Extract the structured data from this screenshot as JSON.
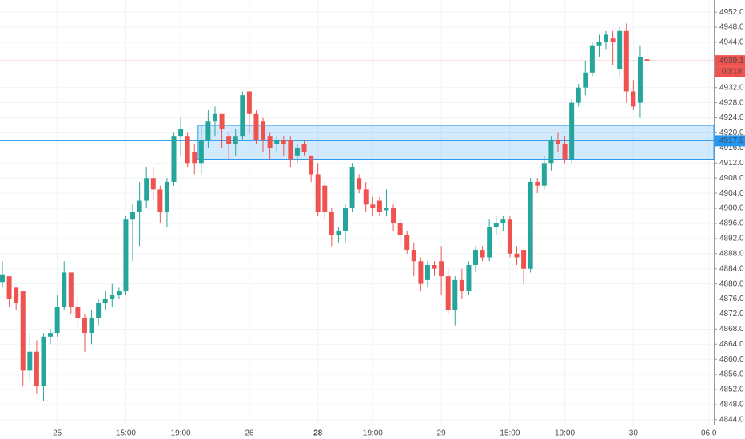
{
  "chart_data": {
    "type": "candlestick",
    "up_color": "#26a69a",
    "down_color": "#ef5350",
    "grid": true,
    "categories": [
      null,
      null,
      null,
      null,
      null,
      null,
      null,
      null,
      "25",
      null,
      null,
      null,
      null,
      null,
      null,
      null,
      null,
      null,
      "15:00",
      null,
      null,
      null,
      null,
      null,
      null,
      null,
      "19:00",
      null,
      null,
      null,
      null,
      null,
      null,
      null,
      null,
      null,
      "26",
      null,
      null,
      null,
      null,
      null,
      null,
      null,
      null,
      null,
      "28",
      null,
      null,
      null,
      null,
      null,
      null,
      null,
      "19:00",
      null,
      null,
      null,
      null,
      null,
      null,
      null,
      null,
      null,
      "29",
      null,
      null,
      null,
      null,
      null,
      null,
      null,
      null,
      null,
      "15:00",
      null,
      null,
      null,
      null,
      null,
      null,
      null,
      "19:00",
      null,
      null,
      null,
      null,
      null,
      null,
      null,
      null,
      null,
      "30",
      null,
      null,
      null,
      null,
      null,
      null,
      null,
      null,
      null,
      null,
      "06:0"
    ],
    "emphasized_categories": [
      46
    ],
    "open": [
      4880.5,
      4882,
      4879,
      4878,
      4857,
      4862,
      4853,
      4866,
      4867,
      4874,
      4883,
      4874,
      4871,
      4867,
      4871,
      4875,
      4876,
      4877,
      4878,
      4897,
      4899,
      4902,
      4908,
      4905,
      4899,
      4907,
      4919,
      4919,
      4915,
      4912,
      4918,
      4923,
      4925,
      4919,
      4917,
      4919,
      4931,
      4925,
      4923,
      4919,
      4917,
      4918,
      4918,
      4914,
      4917,
      4914,
      4909,
      4906,
      4899,
      4893,
      4894,
      4900,
      4908,
      4905,
      4901,
      4902,
      4899.5,
      4900,
      4896,
      4893,
      4889,
      4886,
      4881,
      4885,
      4886,
      4882,
      4873,
      4881,
      4878,
      4885,
      4889,
      4887,
      4895,
      4896,
      4897,
      4888,
      4889,
      4884,
      4907,
      4906,
      4912,
      4918,
      4917,
      4913,
      4928,
      4932,
      4936,
      4943,
      4944,
      4945,
      4937,
      4947,
      4931,
      4928,
      4939.5,
      null,
      null,
      null,
      null,
      null,
      null,
      null,
      null,
      null
    ],
    "high": [
      4886,
      4882,
      4879,
      4878,
      4867,
      4865,
      4867,
      4868,
      4877,
      4886,
      4883,
      4877,
      4872,
      4873,
      4876,
      4878,
      4880,
      4879,
      4898,
      4901,
      4907,
      4911,
      4911,
      4906,
      4908,
      4920,
      4924,
      4920,
      4917,
      4922,
      4926,
      4927,
      4925,
      4920,
      4921,
      4931,
      4931,
      4926,
      4924,
      4920,
      4919,
      4919,
      4919,
      4917,
      4918,
      4914,
      4912,
      4907,
      4900,
      4895,
      4901,
      4912,
      4909,
      4907,
      4903,
      4903,
      4905,
      4901,
      4897,
      4894,
      4891,
      4887,
      4886,
      4886,
      4890,
      4884,
      4882,
      4884,
      4886,
      4890,
      4890,
      4897,
      4898,
      4898,
      4898,
      4890,
      4889,
      4908,
      4908,
      4914,
      4919,
      4920,
      4919,
      4929,
      4933,
      4939,
      4944,
      4946,
      4947,
      4947,
      4948,
      4949,
      4934,
      4943,
      4944,
      null,
      null,
      null,
      null,
      null,
      null,
      null,
      null,
      null
    ],
    "low": [
      4879,
      4874,
      4873,
      4853,
      4854,
      4851,
      4849,
      4864,
      4866,
      4873,
      4872,
      4868,
      4862,
      4864,
      4869,
      4873,
      4874,
      4876,
      4877,
      4886,
      4890,
      4900,
      4902,
      4896,
      4895,
      4906,
      4914,
      4911,
      4909,
      4909,
      4916,
      4919,
      4916,
      4913,
      4914,
      4918,
      4920,
      4917,
      4915,
      4913,
      4915,
      4914,
      4911,
      4912,
      4914,
      4907,
      4898,
      4897,
      4890,
      4891,
      4891,
      4899,
      4904,
      4899,
      4898,
      4898,
      4898,
      4894,
      4890,
      4888,
      4882,
      4878,
      4879,
      4882,
      4877,
      4872,
      4869,
      4876,
      4877,
      4883,
      4886,
      4886,
      4893,
      4894,
      4887,
      4885,
      4880,
      4883,
      4904,
      4905,
      4910,
      4915,
      4912,
      4912,
      4927,
      4930,
      4935,
      4940,
      4942,
      4938,
      4935,
      4928,
      4926,
      4924,
      4936,
      null,
      null,
      null,
      null,
      null,
      null,
      null,
      null,
      null
    ],
    "close": [
      4882.5,
      4876,
      4875,
      4857,
      4862,
      4853,
      4866,
      4867,
      4874,
      4883,
      4874,
      4871,
      4867,
      4871,
      4875,
      4876,
      4877,
      4878,
      4897,
      4899,
      4902,
      4908,
      4905,
      4899,
      4907,
      4919,
      4921,
      4912,
      4912,
      4918,
      4923,
      4925,
      4921,
      4917,
      4919,
      4930,
      4925,
      4918,
      4918,
      4916,
      4918,
      4917,
      4913,
      4916,
      4915,
      4909,
      4899,
      4899,
      4893,
      4894,
      4900,
      4911,
      4905,
      4901,
      4900,
      4899,
      4900,
      4896,
      4893,
      4889,
      4886,
      4880,
      4885,
      4884,
      4882,
      4873,
      4881,
      4878,
      4885,
      4889,
      4887,
      4895,
      4896,
      4897,
      4888,
      4887,
      4884,
      4907,
      4906,
      4912,
      4918,
      4917,
      4913,
      4928,
      4932,
      4936,
      4943,
      4944,
      4946,
      4944,
      4947,
      4931,
      4927,
      4940,
      4939.1,
      null,
      null,
      null,
      null,
      null,
      null,
      null,
      null,
      null
    ],
    "ylim": [
      4842.7,
      4955.2
    ],
    "yticks": [
      {
        "value": 4952,
        "label": "4952.0"
      },
      {
        "value": 4948,
        "label": "4948.0"
      },
      {
        "value": 4944,
        "label": "4944.0"
      },
      {
        "value": 4932,
        "label": "4932.0"
      },
      {
        "value": 4928,
        "label": "4928.0"
      },
      {
        "value": 4924,
        "label": "4924.0"
      },
      {
        "value": 4920,
        "label": "4920.0"
      },
      {
        "value": 4916,
        "label": "4916.0"
      },
      {
        "value": 4912,
        "label": "4912.0"
      },
      {
        "value": 4908,
        "label": "4908.0"
      },
      {
        "value": 4904,
        "label": "4904.0"
      },
      {
        "value": 4900,
        "label": "4900.0"
      },
      {
        "value": 4896,
        "label": "4896.0"
      },
      {
        "value": 4892,
        "label": "4892.0"
      },
      {
        "value": 4888,
        "label": "4888.0"
      },
      {
        "value": 4884,
        "label": "4884.0"
      },
      {
        "value": 4880,
        "label": "4880.0"
      },
      {
        "value": 4876,
        "label": "4876.0"
      },
      {
        "value": 4872,
        "label": "4872.0"
      },
      {
        "value": 4868,
        "label": "4868.0"
      },
      {
        "value": 4864,
        "label": "4864.0"
      },
      {
        "value": 4860,
        "label": "4860.0"
      },
      {
        "value": 4856,
        "label": "4856.0"
      },
      {
        "value": 4852,
        "label": "4852.0"
      },
      {
        "value": 4848,
        "label": "4848.0"
      },
      {
        "value": 4844,
        "label": "4844.0"
      }
    ],
    "last_price": 4939.1,
    "last_price_color": "#ef5350",
    "countdown": "00:18",
    "level": 4917.9,
    "level_color": "#2196f3",
    "zone": {
      "top": 4922,
      "bottom": 4913,
      "start_index": 29
    }
  }
}
